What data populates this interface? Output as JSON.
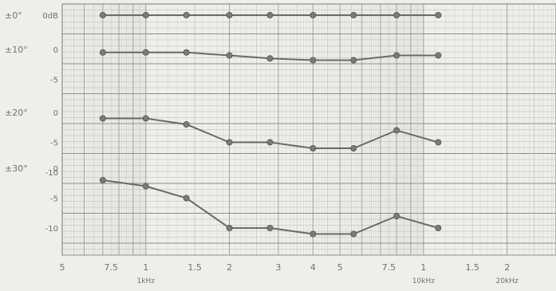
{
  "chart_data": {
    "type": "line",
    "x_scale": "log",
    "xlim": [
      500,
      30000
    ],
    "x_ticks": [
      {
        "value": 500,
        "label": "5"
      },
      {
        "value": 750,
        "label": "7.5"
      },
      {
        "value": 1000,
        "label": "1"
      },
      {
        "value": 1500,
        "label": "1.5"
      },
      {
        "value": 2000,
        "label": "2"
      },
      {
        "value": 3000,
        "label": "3"
      },
      {
        "value": 4000,
        "label": "4"
      },
      {
        "value": 5000,
        "label": "5"
      },
      {
        "value": 7500,
        "label": "7.5"
      },
      {
        "value": 10000,
        "label": "1"
      },
      {
        "value": 15000,
        "label": "1.5"
      },
      {
        "value": 20000,
        "label": "2"
      }
    ],
    "x_unit_labels": [
      {
        "value": 1000,
        "label": "1kHz"
      },
      {
        "value": 10000,
        "label": "10kHz"
      },
      {
        "value": 20000,
        "label": "20kHz"
      }
    ],
    "grid": true,
    "x": [
      700,
      1000,
      1400,
      2000,
      2800,
      4000,
      5600,
      8000,
      11300
    ],
    "series": [
      {
        "name": "±0°",
        "values": [
          0,
          0,
          0,
          0,
          0,
          0,
          0,
          0,
          0
        ]
      },
      {
        "name": "±10°",
        "values": [
          -0.5,
          -0.5,
          -0.5,
          -1,
          -1.5,
          -1.8,
          -1.8,
          -1,
          -1
        ]
      },
      {
        "name": "±20°",
        "values": [
          -1,
          -1,
          -2,
          -5,
          -5,
          -6,
          -6,
          -3,
          -5
        ]
      },
      {
        "name": "±30°",
        "values": [
          -2,
          -3,
          -5,
          -10,
          -10,
          -11,
          -11,
          -8,
          -10
        ]
      }
    ],
    "y_groups": [
      {
        "series": "±0°",
        "label": "±0°",
        "ticks": [
          {
            "label": "0dB"
          }
        ]
      },
      {
        "series": "±10°",
        "label": "±10°",
        "ticks": [
          {
            "label": "0"
          },
          {
            "label": "-5"
          }
        ]
      },
      {
        "series": "±20°",
        "label": "±20°",
        "ticks": [
          {
            "label": "0"
          },
          {
            "label": "-5"
          },
          {
            "label": "-10"
          }
        ]
      },
      {
        "series": "±30°",
        "label": "±30°",
        "ticks": [
          {
            "label": "0"
          },
          {
            "label": "-5"
          },
          {
            "label": "-10"
          }
        ]
      }
    ],
    "colors": {
      "background": "#efefea",
      "grid": "#b9b9b4",
      "grid_major": "#8d8d88",
      "curve": "#6a6a6a",
      "marker": "#7a7a7a",
      "text": "#6f6f6f"
    }
  }
}
